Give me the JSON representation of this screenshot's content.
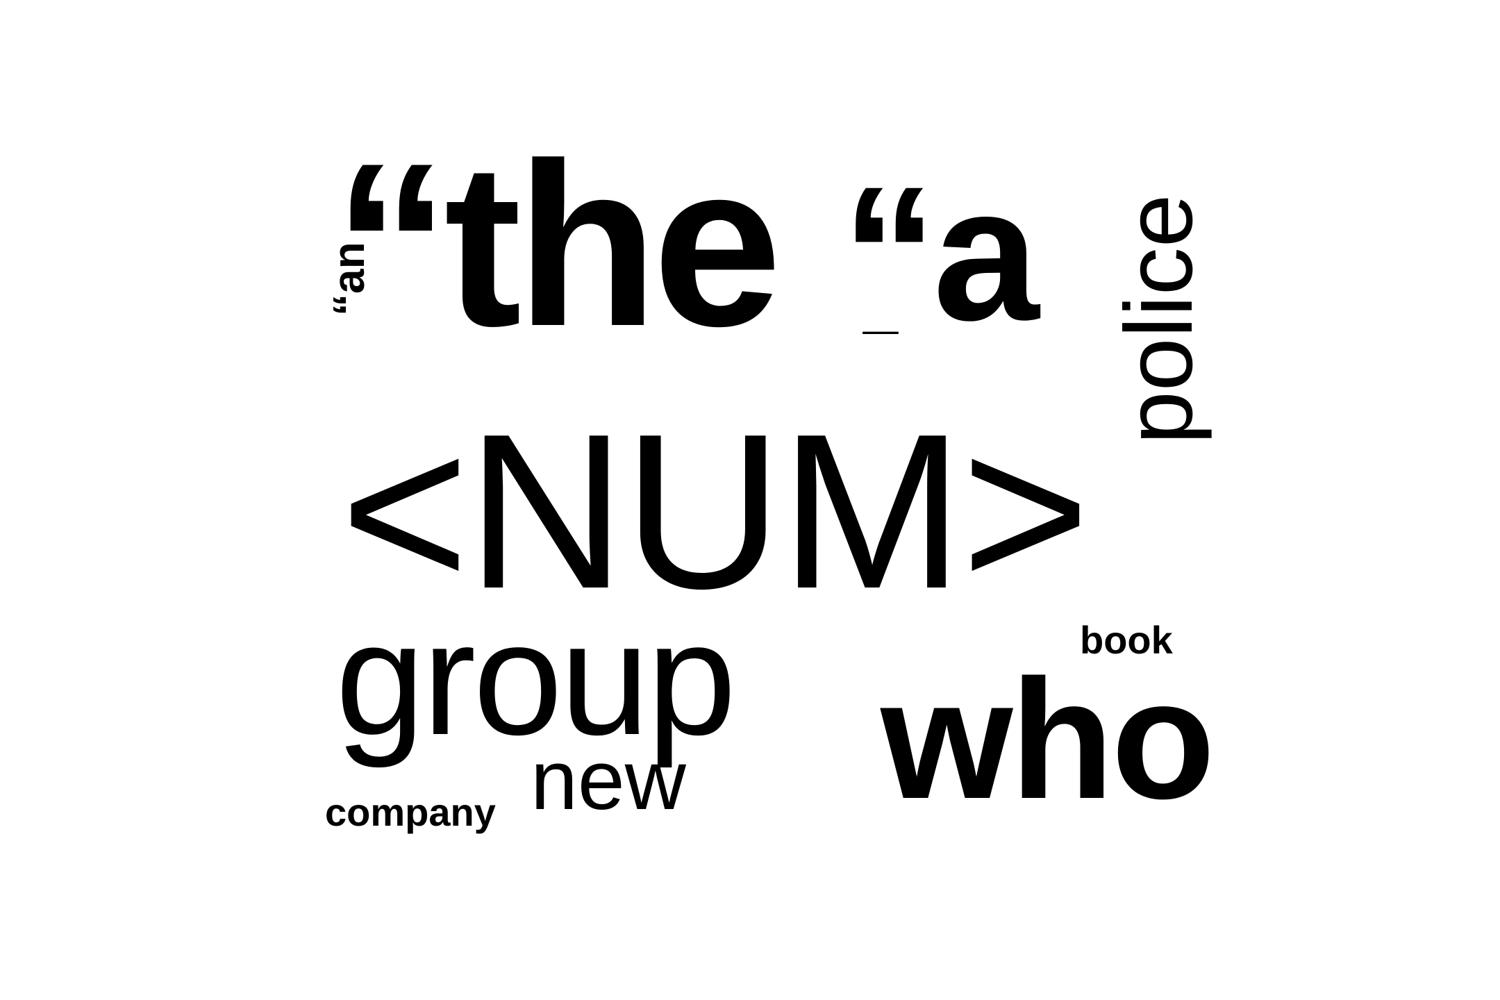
{
  "words": {
    "the": "“the",
    "num": "<NUM>",
    "group": "group",
    "a": "“a",
    "who": "who",
    "new": "new",
    "company": "company",
    "book": "book",
    "underscore": "_",
    "police": "police",
    "an": "“an"
  },
  "colors": {
    "background": "#ffffff",
    "text": "#000000"
  }
}
